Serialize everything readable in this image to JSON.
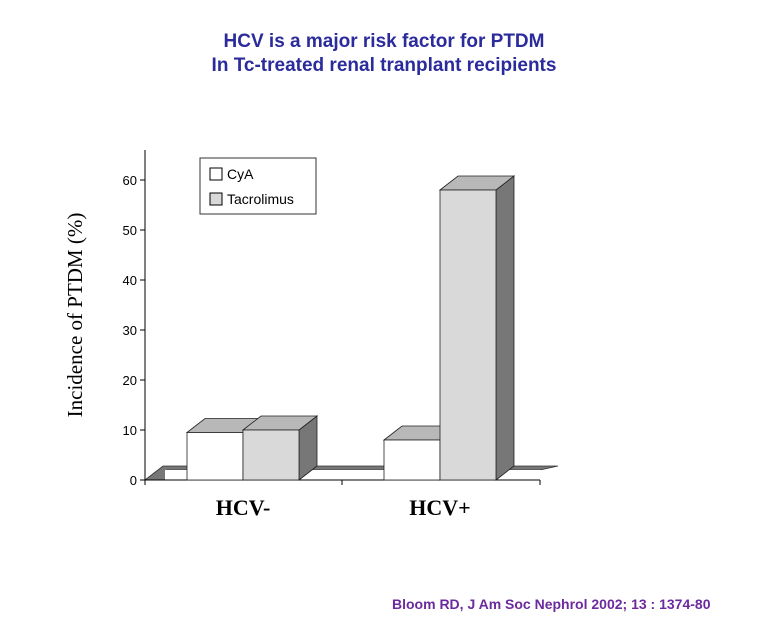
{
  "title_line1": "HCV is a major risk factor for PTDM",
  "title_line2": "In Tc-treated renal tranplant recipients",
  "citation": "Bloom RD, J Am Soc Nephrol 2002; 13 : 1374-80",
  "colors": {
    "title": "#2b2b9c",
    "citation": "#6b2a9e",
    "cya": "#ffffff",
    "tacrolimus": "#d9d9d9",
    "side": "#777777",
    "top": "#b8b8b8"
  },
  "chart_data": {
    "type": "bar",
    "title": "HCV is a major risk factor for PTDM In Tc-treated renal tranplant recipients",
    "xlabel": "",
    "ylabel": "Incidence of PTDM (%)",
    "ylim": [
      0,
      65
    ],
    "yticks": [
      "0",
      "10",
      "20",
      "30",
      "40",
      "50",
      "60"
    ],
    "categories": [
      "HCV-",
      "HCV+"
    ],
    "series": [
      {
        "name": "CyA",
        "values": [
          9.5,
          8
        ]
      },
      {
        "name": "Tacrolimus",
        "values": [
          10,
          58
        ]
      }
    ],
    "legend": "top-left",
    "grid": false
  }
}
